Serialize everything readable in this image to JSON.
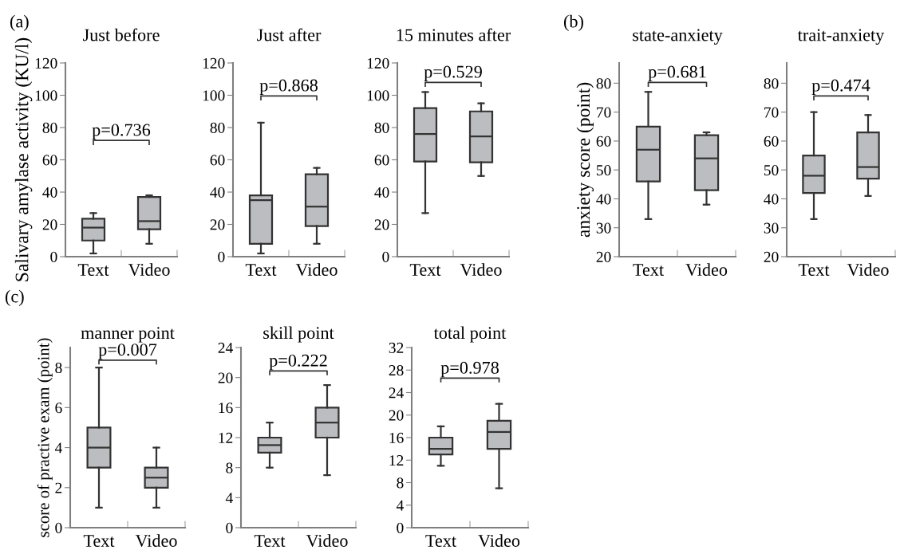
{
  "chart_data": [
    {
      "type": "box",
      "title": "Just before",
      "ylabel": "Salivary amylase activity (KU/l)",
      "categories": [
        "Text",
        "Video"
      ],
      "colors": [
        "#bcbdc0",
        "#bcbdc0"
      ],
      "ylim": [
        0,
        120
      ],
      "yticks": [
        0,
        20,
        40,
        60,
        80,
        100,
        120
      ],
      "grid": false,
      "boxes": [
        {
          "low": 2,
          "q1": 10,
          "median": 18,
          "q3": 23.5,
          "high": 27
        },
        {
          "low": 8,
          "q1": 17,
          "median": 22,
          "q3": 37,
          "high": 38
        }
      ],
      "annotations": [
        "(a)",
        "p=0.736"
      ]
    },
    {
      "type": "box",
      "title": "Just after",
      "categories": [
        "Text",
        "Video"
      ],
      "colors": [
        "#bcbdc0",
        "#bcbdc0"
      ],
      "ylim": [
        0,
        120
      ],
      "yticks": [
        0,
        20,
        40,
        60,
        80,
        100,
        120
      ],
      "grid": false,
      "boxes": [
        {
          "low": 2,
          "q1": 8,
          "median": 35,
          "q3": 38,
          "high": 83
        },
        {
          "low": 8,
          "q1": 19,
          "median": 31,
          "q3": 51,
          "high": 55
        }
      ],
      "annotations": [
        "p=0.868"
      ]
    },
    {
      "type": "box",
      "title": "15 minutes after",
      "categories": [
        "Text",
        "Video"
      ],
      "colors": [
        "#bcbdc0",
        "#bcbdc0"
      ],
      "ylim": [
        0,
        120
      ],
      "yticks": [
        0,
        20,
        40,
        60,
        80,
        100,
        120
      ],
      "grid": false,
      "boxes": [
        {
          "low": 27,
          "q1": 59,
          "median": 76,
          "q3": 92,
          "high": 102
        },
        {
          "low": 50,
          "q1": 58.5,
          "median": 74.5,
          "q3": 90,
          "high": 95
        }
      ],
      "annotations": [
        "p=0.529"
      ]
    },
    {
      "type": "box",
      "title": "state-anxiety",
      "ylabel": "anxiety score (point)",
      "categories": [
        "Text",
        "Video"
      ],
      "colors": [
        "#bcbdc0",
        "#bcbdc0"
      ],
      "ylim": [
        20,
        87
      ],
      "yticks": [
        20,
        30,
        40,
        50,
        60,
        70,
        80
      ],
      "grid": false,
      "boxes": [
        {
          "low": 33,
          "q1": 46,
          "median": 57,
          "q3": 65,
          "high": 77
        },
        {
          "low": 38,
          "q1": 43,
          "median": 54,
          "q3": 62,
          "high": 63
        }
      ],
      "annotations": [
        "(b)",
        "p=0.681"
      ]
    },
    {
      "type": "box",
      "title": "trait-anxiety",
      "categories": [
        "Text",
        "Video"
      ],
      "colors": [
        "#bcbdc0",
        "#bcbdc0"
      ],
      "ylim": [
        20,
        87
      ],
      "yticks": [
        20,
        30,
        40,
        50,
        60,
        70,
        80
      ],
      "grid": false,
      "boxes": [
        {
          "low": 33,
          "q1": 42,
          "median": 48,
          "q3": 55,
          "high": 70
        },
        {
          "low": 41,
          "q1": 47,
          "median": 51,
          "q3": 63,
          "high": 69
        }
      ],
      "annotations": [
        "p=0.474"
      ]
    },
    {
      "type": "box",
      "title": "manner point",
      "ylabel": "score of practive exam (point)",
      "categories": [
        "Text",
        "Video"
      ],
      "colors": [
        "#bcbdc0",
        "#bcbdc0"
      ],
      "ylim": [
        0,
        9
      ],
      "yticks": [
        0,
        2,
        4,
        6,
        8
      ],
      "grid": false,
      "boxes": [
        {
          "low": 1,
          "q1": 3,
          "median": 4,
          "q3": 5,
          "high": 8
        },
        {
          "low": 1,
          "q1": 2,
          "median": 2.5,
          "q3": 3,
          "high": 4
        }
      ],
      "annotations": [
        "(c)",
        "p=0.007"
      ]
    },
    {
      "type": "box",
      "title": "skill point",
      "categories": [
        "Text",
        "Video"
      ],
      "colors": [
        "#bcbdc0",
        "#bcbdc0"
      ],
      "ylim": [
        0,
        24
      ],
      "yticks": [
        0,
        4,
        8,
        12,
        16,
        20,
        24
      ],
      "grid": false,
      "boxes": [
        {
          "low": 8,
          "q1": 10,
          "median": 11,
          "q3": 12,
          "high": 14
        },
        {
          "low": 7,
          "q1": 12,
          "median": 14,
          "q3": 16,
          "high": 19
        }
      ],
      "annotations": [
        "p=0.222"
      ]
    },
    {
      "type": "box",
      "title": "total point",
      "categories": [
        "Text",
        "Video"
      ],
      "colors": [
        "#bcbdc0",
        "#bcbdc0"
      ],
      "ylim": [
        0,
        32
      ],
      "yticks": [
        0,
        4,
        8,
        12,
        16,
        20,
        24,
        28,
        32
      ],
      "grid": false,
      "boxes": [
        {
          "low": 11,
          "q1": 13,
          "median": 14,
          "q3": 16,
          "high": 18
        },
        {
          "low": 7,
          "q1": 14,
          "median": 17,
          "q3": 19,
          "high": 22
        }
      ],
      "annotations": [
        "p=0.978"
      ]
    }
  ]
}
